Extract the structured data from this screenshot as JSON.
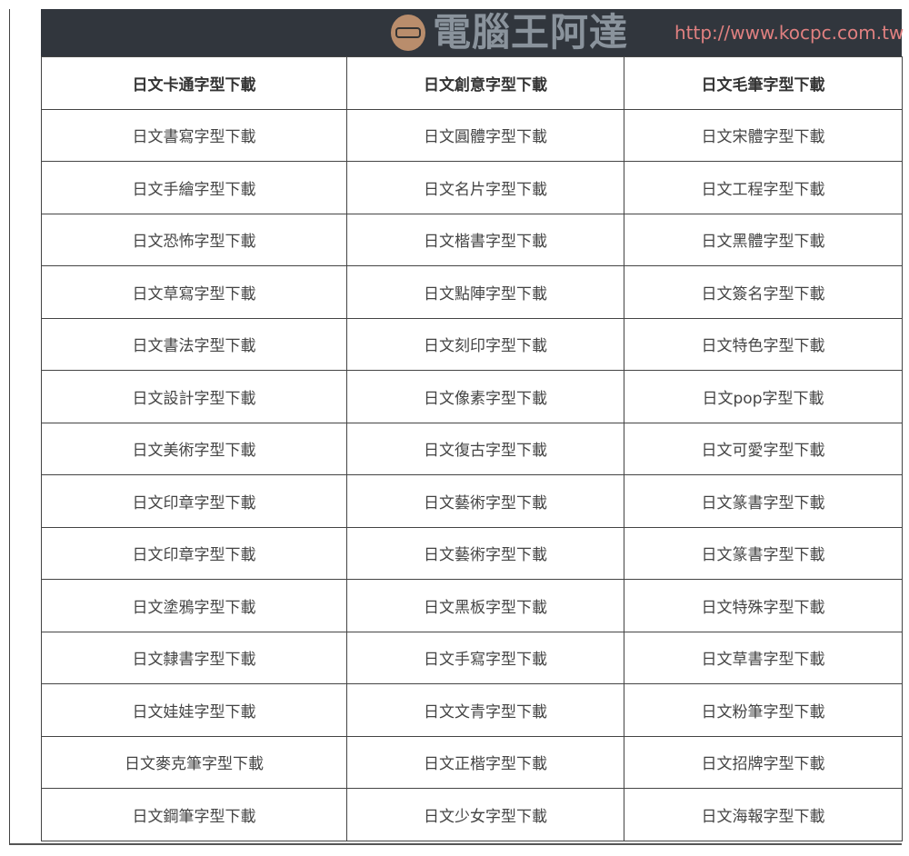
{
  "table": {
    "headers": [
      "日文卡通字型下載",
      "日文創意字型下載",
      "日文毛筆字型下載"
    ],
    "rows": [
      [
        "日文書寫字型下載",
        "日文圓體字型下載",
        "日文宋體字型下載"
      ],
      [
        "日文手繪字型下載",
        "日文名片字型下載",
        "日文工程字型下載"
      ],
      [
        "日文恐怖字型下載",
        "日文楷書字型下載",
        "日文黑體字型下載"
      ],
      [
        "日文草寫字型下載",
        "日文點陣字型下載",
        "日文簽名字型下載"
      ],
      [
        "日文書法字型下載",
        "日文刻印字型下載",
        "日文特色字型下載"
      ],
      [
        "日文設計字型下載",
        "日文像素字型下載",
        "日文pop字型下載"
      ],
      [
        "日文美術字型下載",
        "日文復古字型下載",
        "日文可愛字型下載"
      ],
      [
        "日文印章字型下載",
        "日文藝術字型下載",
        "日文篆書字型下載"
      ],
      [
        "日文印章字型下載",
        "日文藝術字型下載",
        "日文篆書字型下載"
      ],
      [
        "日文塗鴉字型下載",
        "日文黑板字型下載",
        "日文特殊字型下載"
      ],
      [
        "日文隸書字型下載",
        "日文手寫字型下載",
        "日文草書字型下載"
      ],
      [
        "日文娃娃字型下載",
        "日文文青字型下載",
        "日文粉筆字型下載"
      ],
      [
        "日文麥克筆字型下載",
        "日文正楷字型下載",
        "日文招牌字型下載"
      ],
      [
        "日文鋼筆字型下載",
        "日文少女字型下載",
        "日文海報字型下載"
      ]
    ]
  },
  "watermark": {
    "title": "電腦王阿達",
    "url": "http://www.kocpc.com.tw"
  },
  "colors": {
    "header_bar": "#31363d",
    "border": "#444444"
  }
}
